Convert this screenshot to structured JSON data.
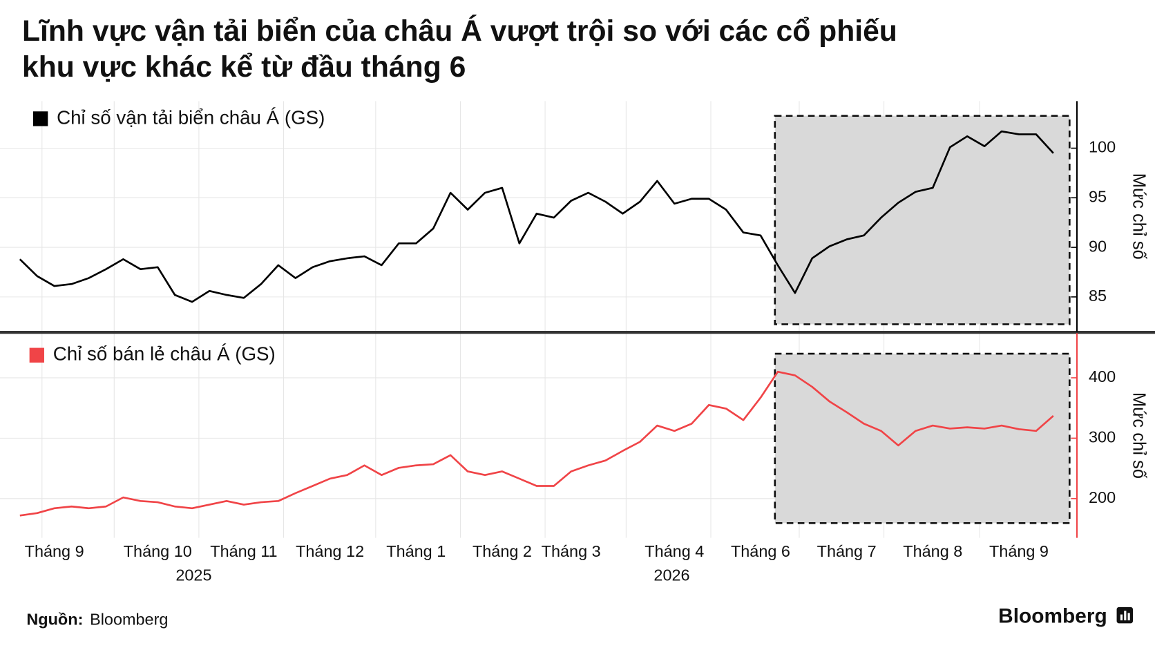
{
  "title": [
    "Lĩnh vực vận tải biển của châu Á vượt trội so với các cổ phiếu",
    "khu vực khác kể từ đầu tháng 6"
  ],
  "source_label": "Nguồn:",
  "source": "Bloomberg",
  "brand": "Bloomberg",
  "chart_data": [
    {
      "type": "line",
      "name": "Chỉ số vận tải biển châu Á (GS)",
      "color": "#000000",
      "y_label": "Mức chỉ số",
      "ylim": [
        81.5,
        104.75
      ],
      "yticks": [
        85,
        90,
        95,
        100
      ],
      "grid": true,
      "values": [
        88.8,
        87.1,
        86.1,
        86.3,
        86.9,
        87.8,
        88.8,
        87.8,
        88.0,
        85.2,
        84.5,
        85.6,
        85.2,
        84.9,
        86.3,
        88.2,
        86.9,
        88.0,
        88.6,
        88.9,
        89.1,
        88.2,
        90.4,
        90.4,
        91.9,
        95.5,
        93.8,
        95.5,
        96.0,
        90.4,
        93.4,
        93.0,
        94.7,
        95.5,
        94.6,
        93.4,
        94.6,
        96.7,
        94.4,
        94.9,
        94.9,
        93.8,
        91.5,
        91.2,
        88.2,
        85.4,
        88.9,
        90.1,
        90.8,
        91.2,
        93.0,
        94.5,
        95.6,
        96.0,
        100.1,
        101.2,
        100.2,
        101.7,
        101.4,
        101.4,
        99.5
      ]
    },
    {
      "type": "line",
      "name": "Chỉ số bán lẻ châu Á (GS)",
      "color": "#f04447",
      "y_label": "Mức chỉ số",
      "ylim": [
        135,
        474
      ],
      "yticks": [
        200,
        300,
        400
      ],
      "grid": true,
      "categories": [
        null,
        null,
        "Tháng 9",
        null,
        null,
        null,
        null,
        null,
        "Tháng 10",
        null,
        null,
        null,
        null,
        "Tháng 11",
        null,
        null,
        null,
        null,
        "Tháng 12",
        null,
        null,
        null,
        null,
        "Tháng 1",
        null,
        null,
        null,
        null,
        "Tháng 2",
        null,
        null,
        null,
        "Tháng 3",
        null,
        null,
        null,
        null,
        null,
        "Tháng 4",
        null,
        null,
        null,
        null,
        "Tháng 6",
        null,
        null,
        null,
        null,
        "Tháng 7",
        null,
        null,
        null,
        null,
        "Tháng 8",
        null,
        null,
        null,
        null,
        "Tháng 9",
        null,
        null
      ],
      "year_labels": [
        "2025",
        "2026"
      ],
      "values": [
        172,
        176,
        184,
        187,
        184,
        187,
        202,
        196,
        194,
        187,
        184,
        190,
        196,
        190,
        194,
        196,
        209,
        221,
        233,
        239,
        255,
        239,
        251,
        255,
        257,
        272,
        245,
        239,
        245,
        233,
        221,
        221,
        245,
        255,
        263,
        279,
        294,
        321,
        312,
        324,
        355,
        349,
        330,
        367,
        410,
        404,
        385,
        361,
        343,
        324,
        312,
        288,
        312,
        321,
        316,
        318,
        316,
        321,
        315,
        312,
        337
      ]
    }
  ]
}
